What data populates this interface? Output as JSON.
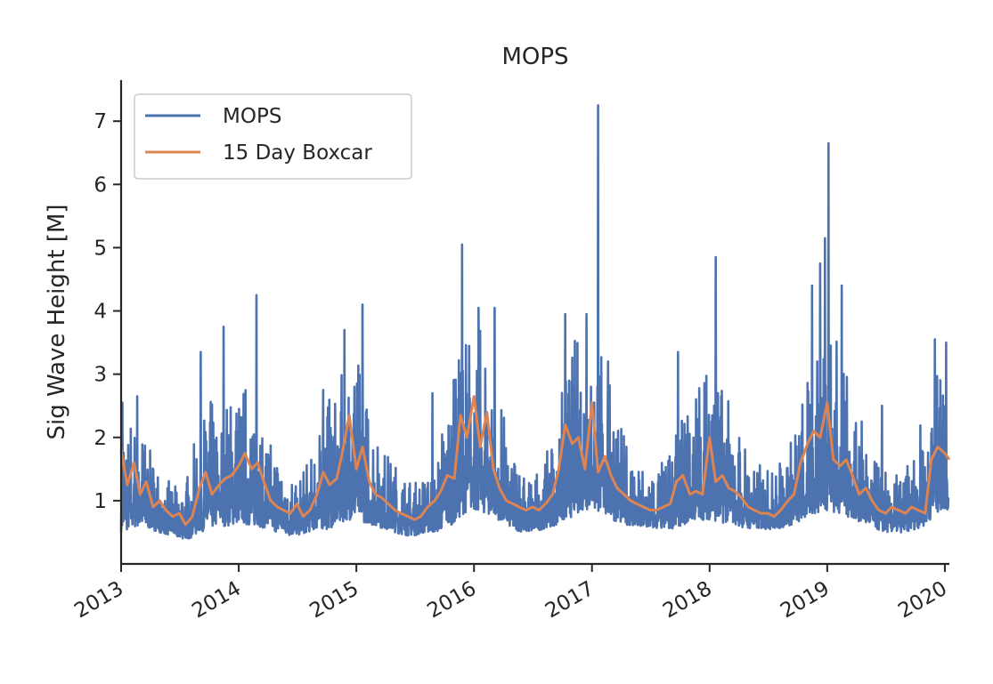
{
  "chart_data": {
    "type": "line",
    "title": "MOPS",
    "xlabel": "",
    "ylabel": "Sig Wave Height [M]",
    "x_range": [
      "2013-01-01",
      "2020-01-15"
    ],
    "y_range": [
      0,
      7.65
    ],
    "x_ticks": [
      "2013",
      "2014",
      "2015",
      "2016",
      "2017",
      "2018",
      "2019",
      "2020"
    ],
    "y_ticks": [
      "1",
      "2",
      "3",
      "4",
      "5",
      "6",
      "7"
    ],
    "y_tick_values": [
      1,
      2,
      3,
      4,
      5,
      6,
      7
    ],
    "grid": false,
    "legend": {
      "placement": "top-left",
      "entries": [
        "MOPS",
        "15 Day Boxcar"
      ]
    },
    "colors": {
      "MOPS": "#4c72b0",
      "15 Day Boxcar": "#dd8452"
    },
    "series": [
      {
        "name": "MOPS",
        "style": "noisy-daily",
        "x": [
          "2013-01-01",
          "2013-02-01",
          "2013-03-01",
          "2013-04-01",
          "2013-05-01",
          "2013-06-01",
          "2013-07-01",
          "2013-08-01",
          "2013-09-01",
          "2013-10-01",
          "2013-11-01",
          "2013-12-01",
          "2014-01-01",
          "2014-02-01",
          "2014-03-01",
          "2014-04-01",
          "2014-05-01",
          "2014-06-01",
          "2014-07-01",
          "2014-08-01",
          "2014-09-01",
          "2014-10-01",
          "2014-11-01",
          "2014-12-01",
          "2015-01-01",
          "2015-02-01",
          "2015-03-01",
          "2015-04-01",
          "2015-05-01",
          "2015-06-01",
          "2015-07-01",
          "2015-08-01",
          "2015-09-01",
          "2015-10-01",
          "2015-11-01",
          "2015-12-01",
          "2016-01-01",
          "2016-02-01",
          "2016-03-01",
          "2016-04-01",
          "2016-05-01",
          "2016-06-01",
          "2016-07-01",
          "2016-08-01",
          "2016-09-01",
          "2016-10-01",
          "2016-11-01",
          "2016-12-01",
          "2017-01-01",
          "2017-02-01",
          "2017-03-01",
          "2017-04-01",
          "2017-05-01",
          "2017-06-01",
          "2017-07-01",
          "2017-08-01",
          "2017-09-01",
          "2017-10-01",
          "2017-11-01",
          "2017-12-01",
          "2018-01-01",
          "2018-02-01",
          "2018-03-01",
          "2018-04-01",
          "2018-05-01",
          "2018-06-01",
          "2018-07-01",
          "2018-08-01",
          "2018-09-01",
          "2018-10-01",
          "2018-11-01",
          "2018-12-01",
          "2019-01-01",
          "2019-02-01",
          "2019-03-01",
          "2019-04-01",
          "2019-05-01",
          "2019-06-01",
          "2019-07-01",
          "2019-08-01",
          "2019-09-01",
          "2019-10-01",
          "2019-11-01",
          "2019-12-01",
          "2020-01-01"
        ],
        "values_low": [
          0.5,
          0.55,
          0.6,
          0.55,
          0.5,
          0.45,
          0.4,
          0.4,
          0.5,
          0.55,
          0.6,
          0.6,
          0.65,
          0.6,
          0.6,
          0.55,
          0.5,
          0.45,
          0.45,
          0.5,
          0.55,
          0.55,
          0.6,
          0.7,
          0.7,
          0.65,
          0.6,
          0.55,
          0.5,
          0.45,
          0.45,
          0.5,
          0.5,
          0.55,
          0.65,
          0.8,
          0.85,
          0.8,
          0.75,
          0.65,
          0.55,
          0.5,
          0.5,
          0.55,
          0.6,
          0.65,
          0.75,
          0.85,
          0.85,
          0.8,
          0.7,
          0.65,
          0.6,
          0.55,
          0.55,
          0.55,
          0.55,
          0.6,
          0.65,
          0.7,
          0.7,
          0.65,
          0.65,
          0.6,
          0.55,
          0.55,
          0.55,
          0.55,
          0.6,
          0.65,
          0.7,
          0.8,
          0.85,
          0.8,
          0.75,
          0.7,
          0.6,
          0.55,
          0.5,
          0.5,
          0.5,
          0.55,
          0.6,
          0.8,
          0.85
        ],
        "values_high": [
          2.5,
          2.4,
          2.2,
          1.8,
          1.5,
          1.3,
          1.2,
          1.5,
          2.4,
          2.6,
          2.6,
          2.6,
          2.7,
          3.0,
          2.4,
          2.0,
          1.8,
          1.6,
          1.4,
          1.6,
          2.0,
          2.6,
          2.8,
          3.2,
          3.4,
          2.6,
          2.2,
          1.8,
          1.6,
          1.4,
          1.3,
          1.4,
          1.6,
          2.4,
          3.0,
          3.6,
          3.8,
          3.8,
          3.0,
          2.4,
          1.8,
          1.5,
          1.4,
          1.6,
          2.0,
          2.8,
          3.6,
          3.6,
          4.0,
          3.4,
          2.8,
          2.2,
          1.8,
          1.6,
          1.5,
          1.6,
          1.8,
          2.2,
          2.8,
          3.0,
          3.2,
          2.9,
          2.6,
          2.2,
          1.8,
          1.6,
          1.5,
          1.6,
          1.8,
          2.4,
          3.0,
          3.6,
          4.0,
          3.6,
          3.0,
          2.6,
          2.0,
          1.6,
          1.5,
          1.4,
          1.5,
          1.8,
          2.6,
          3.0,
          3.0
        ],
        "peaks": [
          {
            "x": "2013-01-05",
            "value": 2.55
          },
          {
            "x": "2013-02-20",
            "value": 2.65
          },
          {
            "x": "2013-09-05",
            "value": 3.35
          },
          {
            "x": "2013-11-15",
            "value": 3.75
          },
          {
            "x": "2014-02-25",
            "value": 4.25
          },
          {
            "x": "2014-09-20",
            "value": 2.75
          },
          {
            "x": "2014-11-25",
            "value": 3.7
          },
          {
            "x": "2015-01-20",
            "value": 4.1
          },
          {
            "x": "2015-08-25",
            "value": 2.7
          },
          {
            "x": "2015-11-25",
            "value": 5.05
          },
          {
            "x": "2016-01-15",
            "value": 4.05
          },
          {
            "x": "2016-03-05",
            "value": 4.05
          },
          {
            "x": "2016-10-10",
            "value": 3.95
          },
          {
            "x": "2016-12-15",
            "value": 3.95
          },
          {
            "x": "2017-01-20",
            "value": 7.25
          },
          {
            "x": "2017-02-20",
            "value": 3.2
          },
          {
            "x": "2017-09-25",
            "value": 3.35
          },
          {
            "x": "2018-01-20",
            "value": 4.85
          },
          {
            "x": "2018-11-15",
            "value": 4.4
          },
          {
            "x": "2018-12-10",
            "value": 4.75
          },
          {
            "x": "2018-12-25",
            "value": 5.15
          },
          {
            "x": "2019-01-05",
            "value": 6.65
          },
          {
            "x": "2019-02-15",
            "value": 4.4
          },
          {
            "x": "2019-06-20",
            "value": 2.5
          },
          {
            "x": "2019-12-01",
            "value": 3.55
          },
          {
            "x": "2020-01-05",
            "value": 3.5
          }
        ]
      },
      {
        "name": "15 Day Boxcar",
        "style": "smooth",
        "x": [
          "2013-01-01",
          "2013-01-20",
          "2013-02-10",
          "2013-03-01",
          "2013-03-20",
          "2013-04-10",
          "2013-05-01",
          "2013-05-20",
          "2013-06-10",
          "2013-07-01",
          "2013-07-20",
          "2013-08-10",
          "2013-09-01",
          "2013-09-20",
          "2013-10-10",
          "2013-11-01",
          "2013-11-20",
          "2013-12-10",
          "2014-01-01",
          "2014-01-20",
          "2014-02-10",
          "2014-03-01",
          "2014-03-20",
          "2014-04-10",
          "2014-05-01",
          "2014-05-20",
          "2014-06-10",
          "2014-07-01",
          "2014-07-20",
          "2014-08-10",
          "2014-09-01",
          "2014-09-20",
          "2014-10-10",
          "2014-11-01",
          "2014-11-20",
          "2014-12-10",
          "2015-01-01",
          "2015-01-20",
          "2015-02-10",
          "2015-03-01",
          "2015-03-20",
          "2015-04-10",
          "2015-05-01",
          "2015-05-20",
          "2015-06-10",
          "2015-07-01",
          "2015-07-20",
          "2015-08-10",
          "2015-09-01",
          "2015-09-20",
          "2015-10-10",
          "2015-11-01",
          "2015-11-20",
          "2015-12-10",
          "2016-01-01",
          "2016-01-20",
          "2016-02-10",
          "2016-03-01",
          "2016-03-20",
          "2016-04-10",
          "2016-05-01",
          "2016-05-20",
          "2016-06-10",
          "2016-07-01",
          "2016-07-20",
          "2016-08-10",
          "2016-09-01",
          "2016-09-20",
          "2016-10-10",
          "2016-11-01",
          "2016-11-20",
          "2016-12-10",
          "2017-01-01",
          "2017-01-20",
          "2017-02-10",
          "2017-03-01",
          "2017-03-20",
          "2017-04-10",
          "2017-05-01",
          "2017-05-20",
          "2017-06-10",
          "2017-07-01",
          "2017-07-20",
          "2017-08-10",
          "2017-09-01",
          "2017-09-20",
          "2017-10-10",
          "2017-11-01",
          "2017-11-20",
          "2017-12-10",
          "2018-01-01",
          "2018-01-20",
          "2018-02-10",
          "2018-03-01",
          "2018-03-20",
          "2018-04-10",
          "2018-05-01",
          "2018-05-20",
          "2018-06-10",
          "2018-07-01",
          "2018-07-20",
          "2018-08-10",
          "2018-09-01",
          "2018-09-20",
          "2018-10-10",
          "2018-11-01",
          "2018-11-20",
          "2018-12-10",
          "2019-01-01",
          "2019-01-20",
          "2019-02-10",
          "2019-03-01",
          "2019-03-20",
          "2019-04-10",
          "2019-05-01",
          "2019-05-20",
          "2019-06-10",
          "2019-07-01",
          "2019-07-20",
          "2019-08-10",
          "2019-09-01",
          "2019-09-20",
          "2019-10-10",
          "2019-11-01",
          "2019-11-20",
          "2019-12-10",
          "2020-01-01",
          "2020-01-15"
        ],
        "values": [
          1.8,
          1.25,
          1.6,
          1.1,
          1.3,
          0.9,
          1.0,
          0.85,
          0.75,
          0.8,
          0.62,
          0.75,
          1.2,
          1.45,
          1.1,
          1.25,
          1.35,
          1.4,
          1.55,
          1.75,
          1.5,
          1.6,
          1.3,
          1.0,
          0.9,
          0.85,
          0.8,
          0.95,
          0.75,
          0.85,
          1.1,
          1.45,
          1.25,
          1.35,
          1.8,
          2.35,
          1.5,
          1.85,
          1.3,
          1.1,
          1.05,
          0.95,
          0.85,
          0.8,
          0.75,
          0.7,
          0.75,
          0.9,
          1.0,
          1.15,
          1.4,
          1.35,
          2.35,
          2.0,
          2.65,
          1.85,
          2.4,
          1.5,
          1.2,
          1.0,
          0.95,
          0.9,
          0.85,
          0.9,
          0.85,
          0.95,
          1.1,
          1.5,
          2.2,
          1.9,
          2.0,
          1.5,
          2.55,
          1.45,
          1.7,
          1.4,
          1.2,
          1.1,
          1.0,
          0.95,
          0.9,
          0.85,
          0.85,
          0.9,
          0.95,
          1.3,
          1.4,
          1.1,
          1.15,
          1.1,
          2.0,
          1.3,
          1.4,
          1.2,
          1.15,
          1.05,
          0.9,
          0.85,
          0.8,
          0.8,
          0.75,
          0.85,
          1.0,
          1.1,
          1.6,
          1.9,
          2.1,
          2.0,
          2.55,
          1.65,
          1.55,
          1.65,
          1.4,
          1.1,
          1.2,
          1.0,
          0.85,
          0.8,
          0.9,
          0.85,
          0.8,
          0.9,
          0.85,
          0.8,
          1.65,
          1.85,
          1.75,
          1.65
        ]
      }
    ]
  }
}
